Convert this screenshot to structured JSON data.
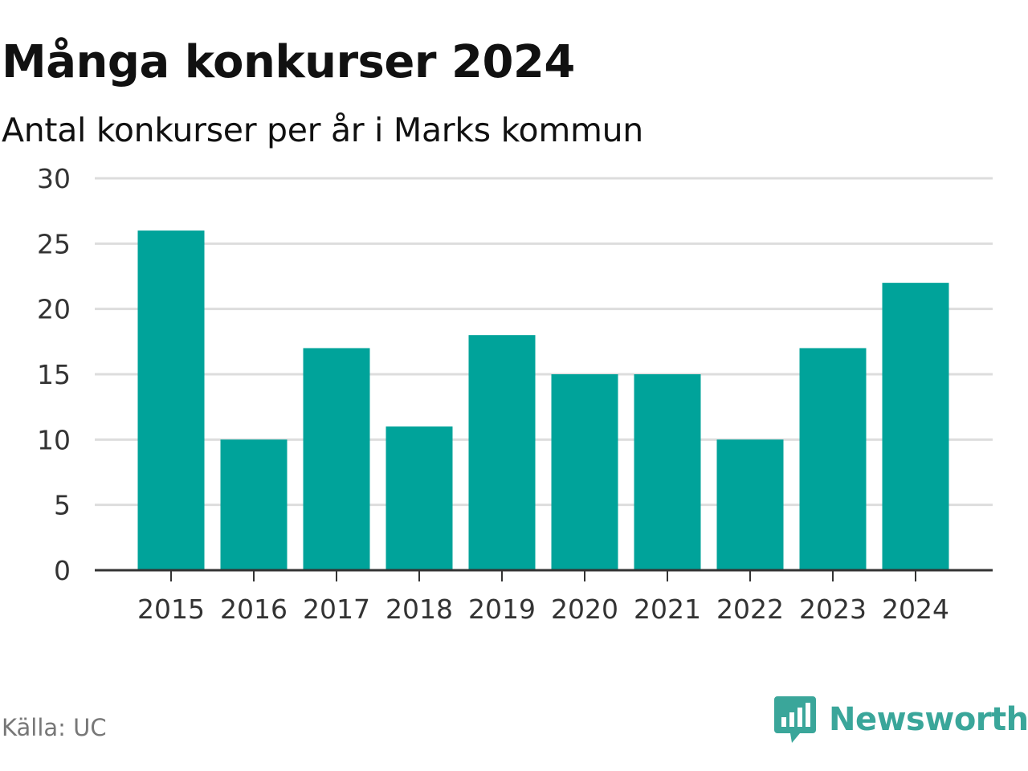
{
  "header": {
    "title": "Många konkurser 2024",
    "subtitle": "Antal konkurser per år i Marks kommun"
  },
  "footer": {
    "source": "Källa: UC",
    "brand": "Newsworthy",
    "brand_logo_icon": "newsworthy-chat-bar-icon"
  },
  "colors": {
    "bar": "#00a39a",
    "grid": "#dddddd",
    "axis": "#333333",
    "tick_text": "#333333",
    "brand": "#3aa69a"
  },
  "chart_data": {
    "type": "bar",
    "title": "Många konkurser 2024",
    "subtitle": "Antal konkurser per år i Marks kommun",
    "xlabel": "",
    "ylabel": "",
    "categories": [
      "2015",
      "2016",
      "2017",
      "2018",
      "2019",
      "2020",
      "2021",
      "2022",
      "2023",
      "2024"
    ],
    "values": [
      26,
      10,
      17,
      11,
      18,
      15,
      15,
      10,
      17,
      22
    ],
    "ylim": [
      0,
      30
    ],
    "yticks": [
      0,
      5,
      10,
      15,
      20,
      25,
      30
    ],
    "grid": true,
    "legend": "none"
  }
}
